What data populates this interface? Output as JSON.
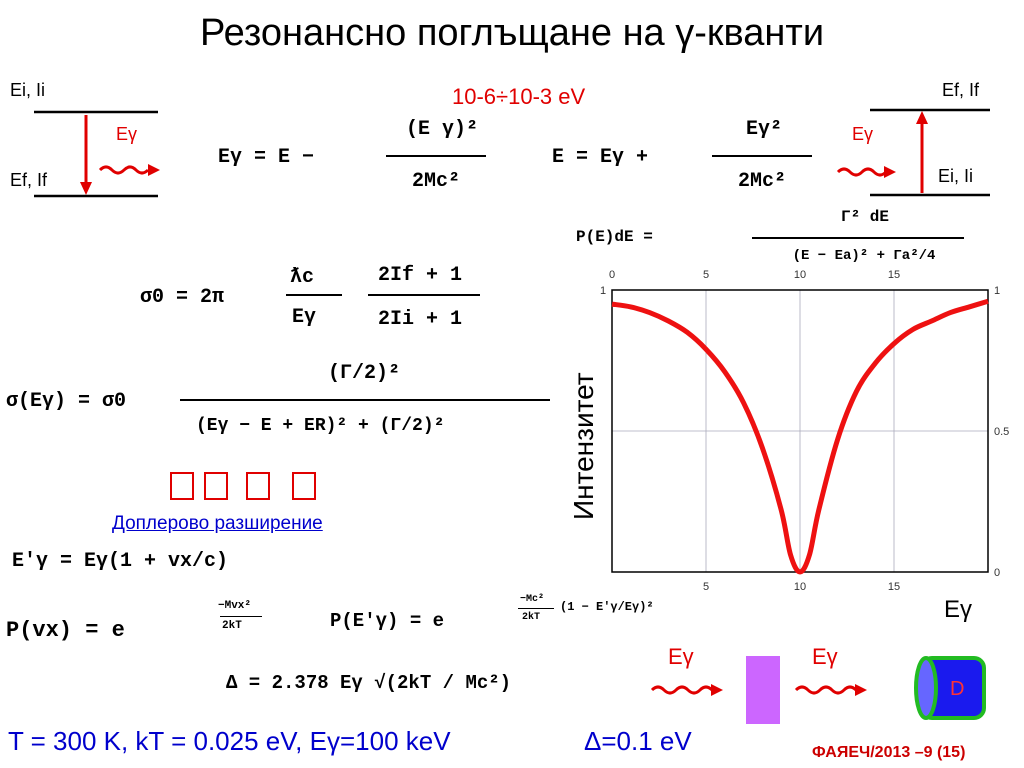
{
  "title": "Резонансно поглъщане на γ-кванти",
  "left_diagram": {
    "upper_level": "Ei, Ii",
    "lower_level": "Ef, If",
    "emitted": "Eγ"
  },
  "right_diagram": {
    "upper_level": "Ef, If",
    "lower_level": "Ei, Ii",
    "absorbed": "Eγ"
  },
  "range_text": "10-6÷10-3 eV",
  "formulas": {
    "emission": {
      "lhs": "Eγ = E −",
      "num": "(E γ)²",
      "den": "2Mc²"
    },
    "absorption": {
      "lhs": "E = Eγ +",
      "num": "Eγ²",
      "den": "2Mc²"
    },
    "breit_wigner": {
      "lhs": "P(E)dE =",
      "num": "Γ² dE",
      "den": "(E − Ea)² + Γa²/4"
    },
    "sigma0": {
      "lhs": "σ0 = 2π",
      "a": "ƛc",
      "b": "Eγ",
      "num": "2If + 1",
      "den": "2Ii + 1"
    },
    "sigma": {
      "lhs": "σ(Eγ) = σ0",
      "num": "(Γ/2)²",
      "den": "(Eγ − E + ER)² + (Γ/2)²"
    },
    "doppler_shift": {
      "text": "E'γ = Eγ(1 + vx/c)"
    },
    "maxwell": {
      "lhs": "P(vx) = e",
      "exp_num": "−Mvx²",
      "exp_den": "2kT"
    },
    "doppler_profile": {
      "lhs": "P(E'γ) = e",
      "exp_num": "−Mc²",
      "exp_den": "2kT",
      "exp_tail": "(1 − E'γ/Eγ)²"
    },
    "width": {
      "text": "Δ = 2.378 Eγ √(2kT / Mc²)"
    }
  },
  "doppler_link": "Доплерово разширение",
  "bottom_line": "T = 300 K, kT = 0.025 eV, Eγ=100 keV",
  "bottom_delta": "Δ=0.1 eV",
  "footer": "ФАЯЕЧ/2013 –9 (15)",
  "source_label": "Eγ",
  "absorber_label": "Eγ",
  "detector_label": "D",
  "chart_data": {
    "type": "line",
    "title": "",
    "xlabel": "Eγ",
    "ylabel": "Интензитет",
    "xlim": [
      0,
      20
    ],
    "ylim": [
      0,
      1
    ],
    "xticks": [
      "0",
      "5",
      "10",
      "15"
    ],
    "yticks_right": [
      "0",
      "0.5",
      "1"
    ],
    "yticks_left": [
      "1"
    ],
    "grid": true,
    "x": [
      0,
      1,
      2,
      3,
      4,
      5,
      6,
      7,
      8,
      9,
      9.5,
      10,
      10.5,
      11,
      12,
      13,
      14,
      15,
      16,
      17,
      18,
      19,
      20
    ],
    "values": [
      0.95,
      0.94,
      0.92,
      0.89,
      0.85,
      0.79,
      0.71,
      0.6,
      0.44,
      0.22,
      0.06,
      0.0,
      0.06,
      0.22,
      0.47,
      0.64,
      0.74,
      0.81,
      0.86,
      0.89,
      0.92,
      0.94,
      0.96
    ],
    "line_color": "#ee1111"
  }
}
